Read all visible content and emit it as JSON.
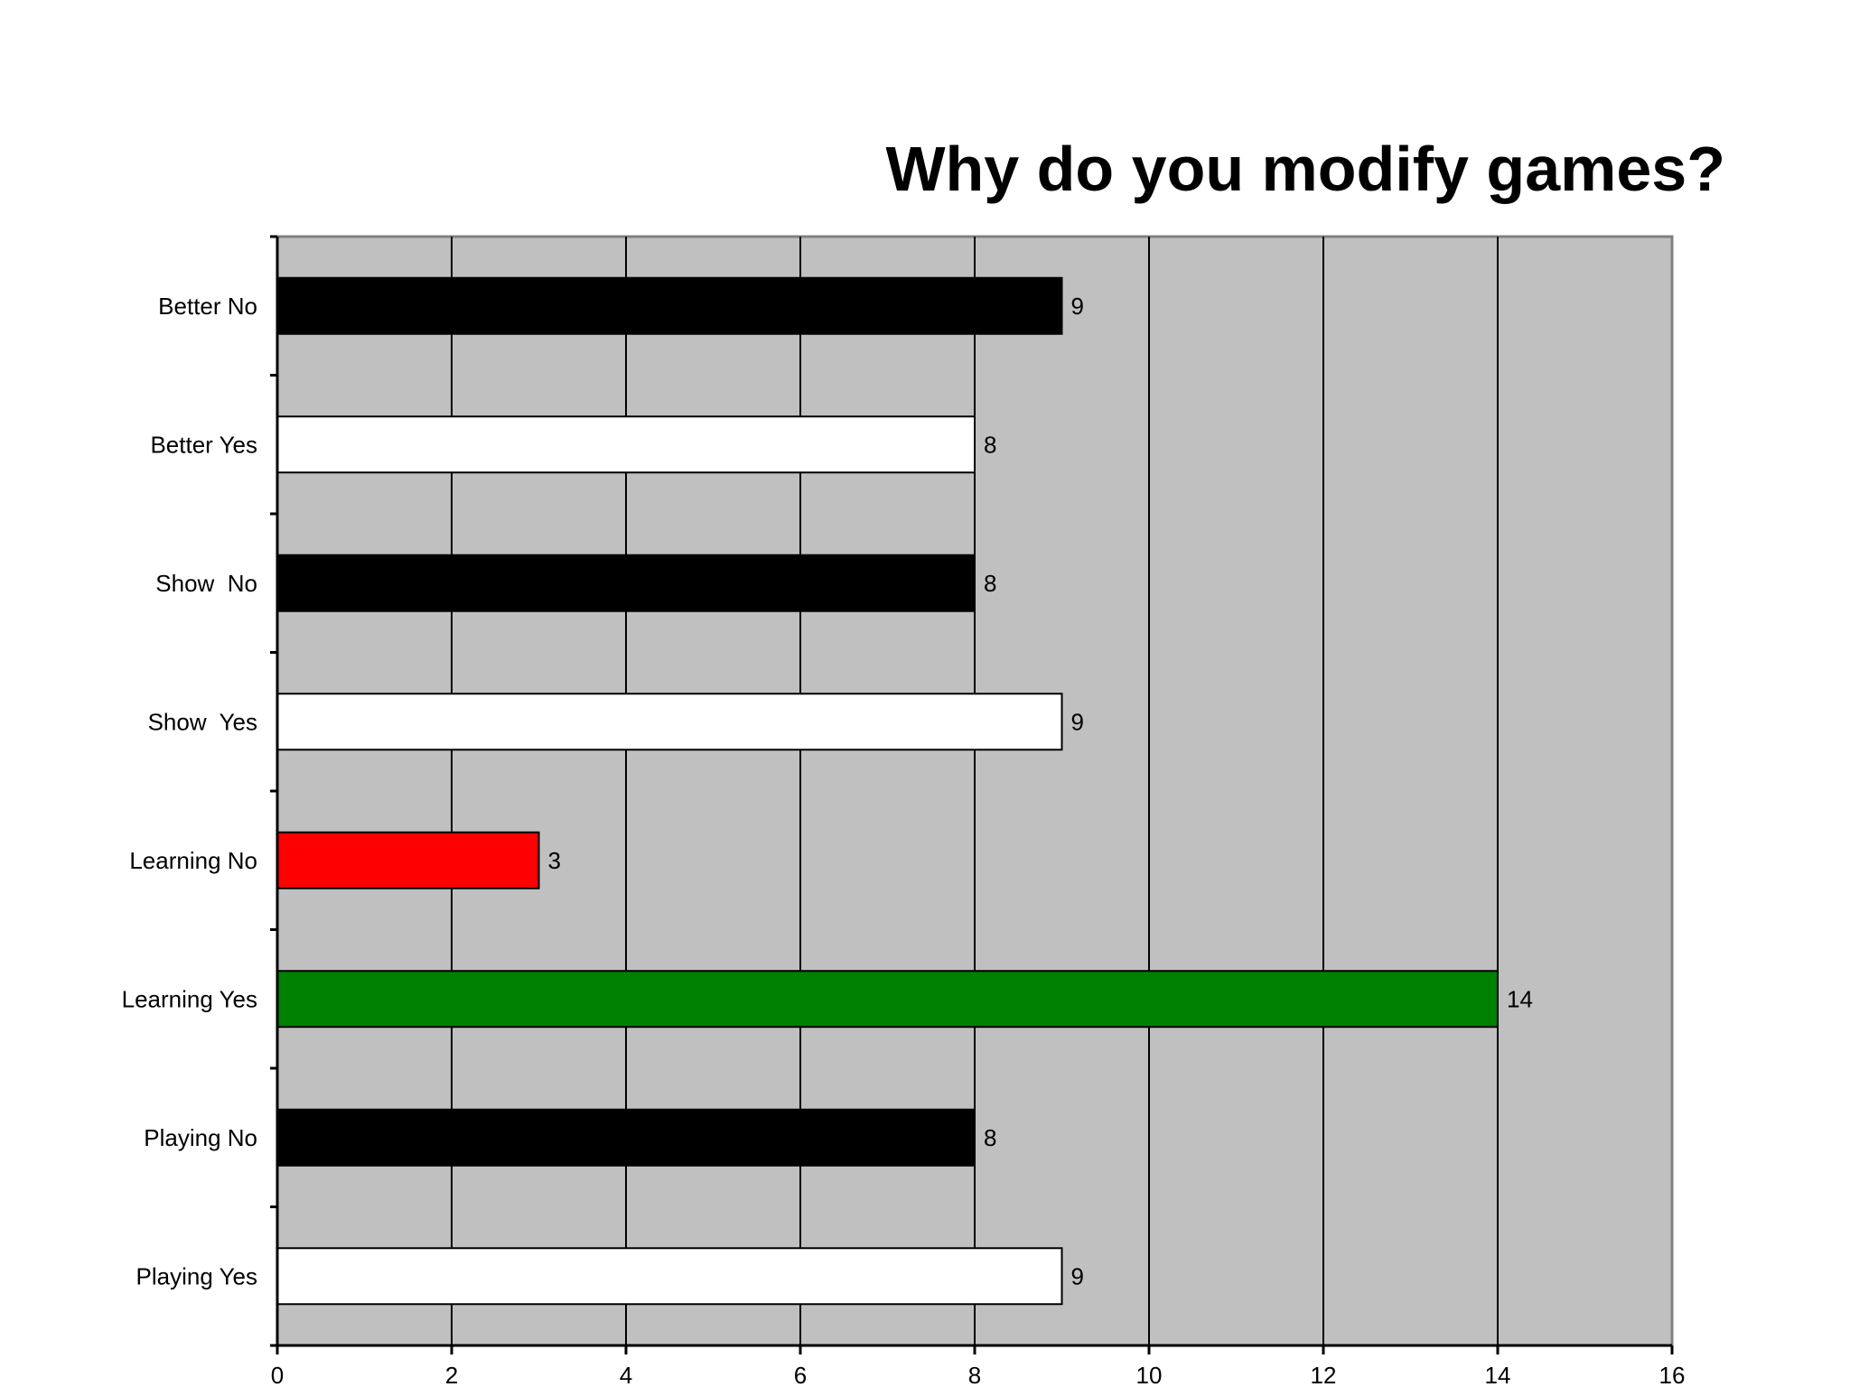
{
  "chart_data": {
    "type": "bar",
    "orientation": "horizontal",
    "title": "Why do you modify games?",
    "xlabel": "",
    "ylabel": "",
    "xlim": [
      0,
      16
    ],
    "xticks": [
      0,
      2,
      4,
      6,
      8,
      10,
      12,
      14,
      16
    ],
    "grid": "vertical",
    "legend": "none",
    "plot_background": "#c0c0c0",
    "categories": [
      "Better No",
      "Better Yes",
      "Show  No",
      "Show  Yes",
      "Learning No",
      "Learning Yes",
      "Playing No",
      "Playing Yes"
    ],
    "values": [
      9,
      8,
      8,
      9,
      3,
      14,
      8,
      9
    ],
    "colors": [
      "#000000",
      "#ffffff",
      "#000000",
      "#ffffff",
      "#ff0000",
      "#008000",
      "#000000",
      "#ffffff"
    ],
    "data_labels": [
      "9",
      "8",
      "8",
      "9",
      "3",
      "14",
      "8",
      "9"
    ]
  }
}
